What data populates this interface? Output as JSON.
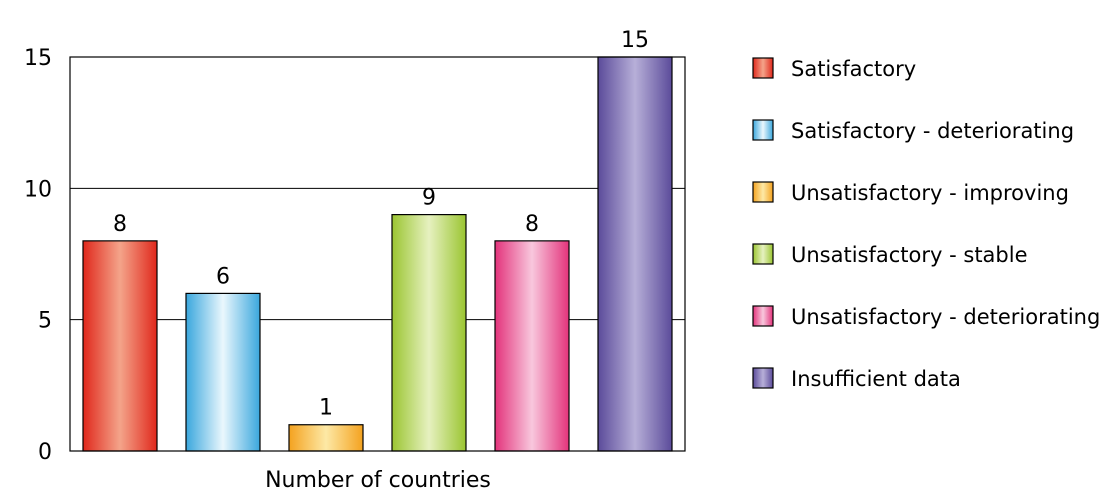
{
  "chart_data": {
    "type": "bar",
    "title": "",
    "xlabel": "Number of countries",
    "ylabel": "",
    "ylim": [
      0,
      15
    ],
    "yticks": [
      0,
      5,
      10,
      15
    ],
    "grid": true,
    "legend_position": "right",
    "series": [
      {
        "name": "Satisfactory",
        "value": 8,
        "colors": [
          "#e0281c",
          "#f4a48a",
          "#e0281c"
        ]
      },
      {
        "name": "Satisfactory - deteriorating",
        "value": 6,
        "colors": [
          "#3aa7dd",
          "#eaf7fd",
          "#3aa7dd"
        ]
      },
      {
        "name": "Unsatisfactory - improving",
        "value": 1,
        "colors": [
          "#f4a21f",
          "#fde9a6",
          "#f4a21f"
        ]
      },
      {
        "name": "Unsatisfactory - stable",
        "value": 9,
        "colors": [
          "#9bc531",
          "#e6f1c0",
          "#9bc531"
        ]
      },
      {
        "name": "Unsatisfactory - deteriorating",
        "value": 8,
        "colors": [
          "#e3337b",
          "#f8c7dd",
          "#e3337b"
        ]
      },
      {
        "name": "Insufficient data",
        "value": 15,
        "colors": [
          "#5b4b9a",
          "#b7afd8",
          "#5b4b9a"
        ]
      }
    ]
  }
}
